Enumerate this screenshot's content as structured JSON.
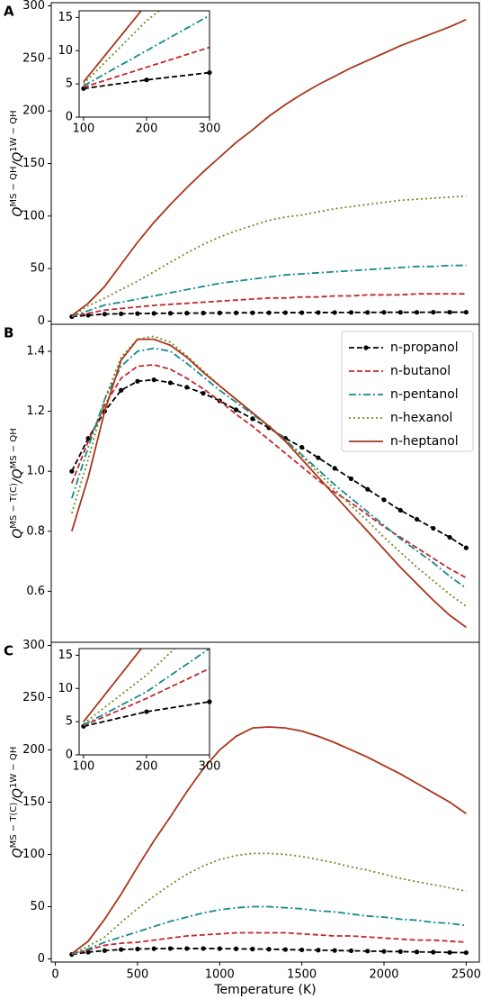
{
  "chart_data": [
    {
      "type": "line",
      "panel": "A",
      "ylabel": [
        "Q",
        "MS − QH",
        "/Q",
        "1W − QH"
      ],
      "x": [
        100,
        200,
        300,
        400,
        500,
        600,
        700,
        800,
        900,
        1000,
        1100,
        1200,
        1300,
        1400,
        1500,
        1600,
        1700,
        1800,
        1900,
        2000,
        2100,
        2200,
        2300,
        2400,
        2500
      ],
      "xlim": [
        -25,
        2580
      ],
      "ylim": [
        -3,
        303
      ],
      "yticks": [
        0,
        50,
        100,
        150,
        200,
        250,
        300
      ],
      "series": [
        {
          "color": "#000000",
          "linestyle": "--",
          "marker": "o",
          "values": [
            4.3,
            5.6,
            6.7,
            7.0,
            7.2,
            7.4,
            7.5,
            7.6,
            7.7,
            7.8,
            7.9,
            8.0,
            8.0,
            8.1,
            8.1,
            8.2,
            8.2,
            8.3,
            8.3,
            8.4,
            8.4,
            8.4,
            8.5,
            8.5,
            8.5
          ]
        },
        {
          "color": "#c1272d",
          "linestyle": "--",
          "values": [
            4.5,
            7.5,
            10.5,
            12,
            13.5,
            15,
            16,
            17,
            18,
            19,
            20,
            21,
            22,
            22,
            23,
            23,
            24,
            24,
            25,
            25,
            25,
            26,
            26,
            26,
            26
          ]
        },
        {
          "color": "#178a8c",
          "linestyle": "-.",
          "values": [
            4.7,
            10,
            15.3,
            18,
            21,
            24,
            27,
            30,
            33,
            36,
            38,
            40,
            42,
            44,
            45,
            46,
            47,
            48,
            49,
            50,
            51,
            52,
            52,
            53,
            53
          ]
        },
        {
          "color": "#6b8e23",
          "linestyle": ":",
          "values": [
            5,
            14.5,
            22,
            30,
            38,
            47,
            56,
            65,
            73,
            80,
            86,
            91,
            96,
            99,
            101,
            104,
            107,
            109,
            111,
            113,
            115,
            116,
            117,
            118,
            119
          ]
        },
        {
          "color": "#a8361b",
          "linestyle": "-",
          "values": [
            5.3,
            17,
            33,
            54,
            75,
            94,
            111,
            127,
            142,
            156,
            170,
            182,
            195,
            206,
            216,
            225,
            233,
            241,
            248,
            255,
            262,
            268,
            274,
            280,
            287
          ]
        }
      ],
      "inset": {
        "xlim": [
          93,
          300
        ],
        "ylim": [
          0,
          16
        ],
        "xticks": [
          100,
          200,
          300
        ],
        "yticks": [
          0,
          5,
          10,
          15
        ]
      }
    },
    {
      "type": "line",
      "panel": "B",
      "ylabel": [
        "Q",
        "MS − T(C)",
        "/Q",
        "MS − QH"
      ],
      "x": [
        100,
        200,
        300,
        400,
        500,
        600,
        700,
        800,
        900,
        1000,
        1100,
        1200,
        1300,
        1400,
        1500,
        1600,
        1700,
        1800,
        1900,
        2000,
        2100,
        2200,
        2300,
        2400,
        2500
      ],
      "xlim": [
        -25,
        2580
      ],
      "ylim": [
        0.43,
        1.49
      ],
      "yticks": [
        0.6,
        0.8,
        {
          "value": 1,
          "label": "1.0"
        },
        1.2,
        1.4
      ],
      "legend": "upper right",
      "series": [
        {
          "name": "n-propanol",
          "color": "#000000",
          "linestyle": "--",
          "marker": "o",
          "values": [
            1.0,
            1.11,
            1.2,
            1.27,
            1.3,
            1.305,
            1.295,
            1.28,
            1.26,
            1.235,
            1.205,
            1.175,
            1.145,
            1.11,
            1.08,
            1.045,
            1.01,
            0.975,
            0.94,
            0.905,
            0.87,
            0.84,
            0.81,
            0.78,
            0.745
          ]
        },
        {
          "name": "n-butanol",
          "color": "#c1272d",
          "linestyle": "--",
          "values": [
            0.96,
            1.1,
            1.22,
            1.31,
            1.35,
            1.355,
            1.34,
            1.31,
            1.275,
            1.235,
            1.19,
            1.15,
            1.105,
            1.06,
            1.015,
            0.97,
            0.93,
            0.895,
            0.855,
            0.815,
            0.78,
            0.745,
            0.71,
            0.675,
            0.645
          ]
        },
        {
          "name": "n-pentanol",
          "color": "#178a8c",
          "linestyle": "-.",
          "values": [
            0.91,
            1.08,
            1.24,
            1.35,
            1.4,
            1.41,
            1.4,
            1.36,
            1.315,
            1.27,
            1.23,
            1.19,
            1.15,
            1.105,
            1.055,
            1.005,
            0.955,
            0.91,
            0.865,
            0.82,
            0.775,
            0.735,
            0.695,
            0.65,
            0.61
          ]
        },
        {
          "name": "n-hexanol",
          "color": "#6b8e23",
          "linestyle": ":",
          "values": [
            0.86,
            1.04,
            1.24,
            1.38,
            1.44,
            1.45,
            1.43,
            1.385,
            1.335,
            1.285,
            1.24,
            1.195,
            1.15,
            1.105,
            1.05,
            0.995,
            0.94,
            0.885,
            0.835,
            0.78,
            0.73,
            0.68,
            0.635,
            0.59,
            0.55
          ]
        },
        {
          "name": "n-heptanol",
          "color": "#a8361b",
          "linestyle": "-",
          "values": [
            0.8,
            0.98,
            1.2,
            1.37,
            1.44,
            1.44,
            1.42,
            1.38,
            1.33,
            1.285,
            1.24,
            1.195,
            1.15,
            1.1,
            1.04,
            0.98,
            0.92,
            0.86,
            0.8,
            0.74,
            0.68,
            0.625,
            0.57,
            0.52,
            0.48
          ]
        }
      ]
    },
    {
      "type": "line",
      "panel": "C",
      "ylabel": [
        "Q",
        "MS − T(C)",
        "/Q",
        "1W − QH"
      ],
      "xlabel": "Temperature (K)",
      "x": [
        100,
        200,
        300,
        400,
        500,
        600,
        700,
        800,
        900,
        1000,
        1100,
        1200,
        1300,
        1400,
        1500,
        1600,
        1700,
        1800,
        1900,
        2000,
        2100,
        2200,
        2300,
        2400,
        2500
      ],
      "xlim": [
        -25,
        2580
      ],
      "xticks": [
        0,
        500,
        1000,
        1500,
        2000,
        2500
      ],
      "ylim": [
        -3,
        303
      ],
      "yticks": [
        0,
        50,
        100,
        150,
        200,
        250,
        300
      ],
      "series": [
        {
          "color": "#000000",
          "linestyle": "--",
          "marker": "o",
          "values": [
            4.3,
            6.5,
            8,
            9,
            9.5,
            9.8,
            10,
            10,
            10,
            9.9,
            9.7,
            9.5,
            9.3,
            9,
            8.7,
            8.4,
            8.1,
            7.8,
            7.5,
            7.2,
            7,
            6.7,
            6.5,
            6.2,
            6
          ]
        },
        {
          "color": "#c1272d",
          "linestyle": "--",
          "values": [
            4.4,
            8.5,
            13,
            15,
            16,
            18,
            20,
            22,
            23,
            24,
            25,
            25,
            25,
            25,
            24,
            23,
            22,
            22,
            21,
            20,
            19,
            18,
            18,
            17,
            16
          ]
        },
        {
          "color": "#178a8c",
          "linestyle": "-.",
          "values": [
            4.5,
            9.5,
            16,
            21,
            26,
            31,
            36,
            40,
            44,
            47,
            49,
            50,
            50,
            49,
            48,
            46,
            45,
            43,
            41,
            40,
            38,
            37,
            35,
            34,
            32
          ]
        },
        {
          "color": "#6b8e23",
          "linestyle": ":",
          "values": [
            4.7,
            12,
            21,
            35,
            48,
            60,
            71,
            81,
            89,
            95,
            99,
            101,
            101,
            100,
            98,
            95,
            92,
            88,
            85,
            81,
            77,
            74,
            71,
            68,
            65
          ]
        },
        {
          "color": "#a8361b",
          "linestyle": "-",
          "values": [
            5,
            17,
            38,
            62,
            88,
            113,
            136,
            160,
            182,
            200,
            213,
            221,
            222,
            221,
            218,
            213,
            207,
            200,
            193,
            185,
            177,
            168,
            159,
            150,
            139
          ]
        }
      ],
      "inset": {
        "xlim": [
          93,
          300
        ],
        "ylim": [
          0,
          16
        ],
        "xticks": [
          100,
          200,
          300
        ],
        "yticks": [
          0,
          5,
          10,
          15
        ]
      }
    }
  ]
}
